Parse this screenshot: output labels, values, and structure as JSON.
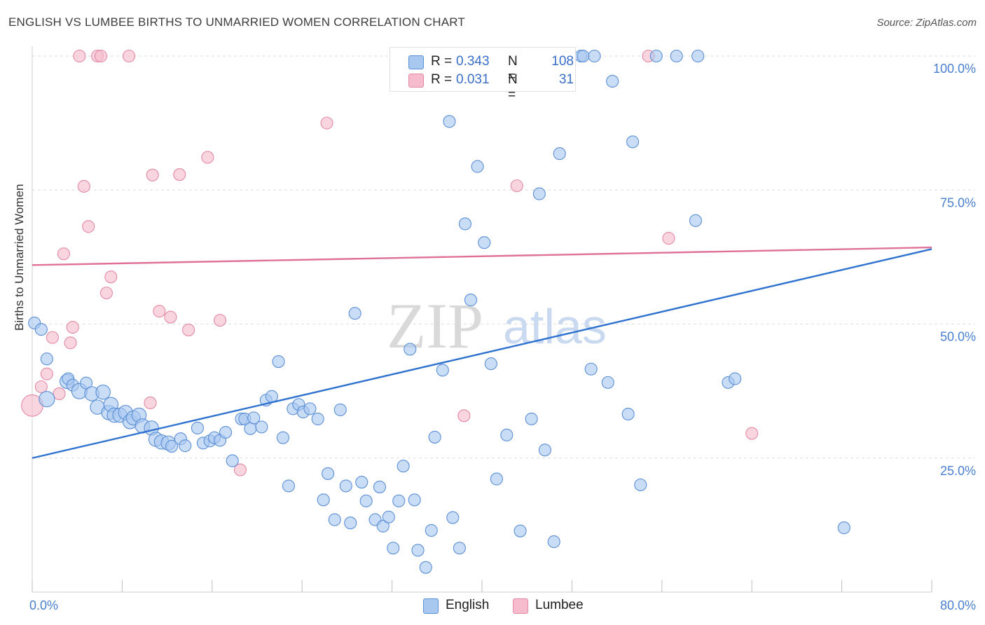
{
  "header": {
    "title": "ENGLISH VS LUMBEE BIRTHS TO UNMARRIED WOMEN CORRELATION CHART",
    "source": "Source: ZipAtlas.com"
  },
  "watermark": {
    "zip": "ZIP",
    "atlas": "atlas"
  },
  "legend": {
    "r_label": "R =",
    "n_label": "N =",
    "english": {
      "r": "0.343",
      "n": "108"
    },
    "lumbee": {
      "r": "0.031",
      "n": "31"
    }
  },
  "bottom_legend": {
    "english": "English",
    "lumbee": "Lumbee"
  },
  "colors": {
    "english_fill": "#a9c8f0",
    "english_stroke": "#5b8fd6",
    "english_line": "#2f72d0",
    "lumbee_fill": "#f6bccd",
    "lumbee_stroke": "#e48aa6",
    "lumbee_line": "#e0729a",
    "grid": "#dcdcdc",
    "tick_label": "#4a7fd0"
  },
  "chart_data": {
    "type": "scatter",
    "title": "ENGLISH VS LUMBEE BIRTHS TO UNMARRIED WOMEN CORRELATION CHART",
    "xlabel": "",
    "ylabel": "Births to Unmarried Women",
    "xlim": [
      0,
      80
    ],
    "ylim": [
      0,
      102
    ],
    "x_tick_labels": [
      "0.0%",
      "80.0%"
    ],
    "y_ticks": [
      {
        "value": 100,
        "label": "100.0%"
      },
      {
        "value": 75,
        "label": "75.0%"
      },
      {
        "value": 50,
        "label": "50.0%"
      },
      {
        "value": 25,
        "label": "25.0%"
      }
    ],
    "grid": true,
    "series": [
      {
        "name": "English",
        "r": 0.343,
        "n": 108,
        "trend": {
          "x": [
            0,
            80
          ],
          "y": [
            25,
            64
          ]
        },
        "points": [
          [
            0.2,
            50.2,
            1.0
          ],
          [
            0.8,
            49.0,
            1.0
          ],
          [
            1.3,
            36.0,
            1.3
          ],
          [
            1.3,
            43.5,
            1.0
          ],
          [
            3.1,
            39.3,
            1.2
          ],
          [
            3.2,
            39.8,
            1.0
          ],
          [
            3.6,
            38.6,
            1.0
          ],
          [
            4.2,
            37.5,
            1.3
          ],
          [
            4.8,
            39.0,
            1.0
          ],
          [
            5.3,
            37.0,
            1.2
          ],
          [
            5.8,
            34.5,
            1.2
          ],
          [
            6.3,
            37.3,
            1.2
          ],
          [
            6.8,
            33.5,
            1.2
          ],
          [
            7.0,
            35.0,
            1.2
          ],
          [
            7.3,
            33.0,
            1.2
          ],
          [
            7.8,
            33.0,
            1.2
          ],
          [
            8.3,
            33.5,
            1.2
          ],
          [
            8.7,
            31.8,
            1.2
          ],
          [
            9.0,
            32.5,
            1.2
          ],
          [
            9.5,
            33.0,
            1.2
          ],
          [
            9.8,
            31.0,
            1.2
          ],
          [
            10.6,
            30.6,
            1.2
          ],
          [
            11.0,
            28.5,
            1.2
          ],
          [
            11.5,
            28.0,
            1.2
          ],
          [
            12.1,
            27.8,
            1.2
          ],
          [
            12.4,
            27.2,
            1.0
          ],
          [
            13.2,
            28.6,
            1.0
          ],
          [
            13.6,
            27.3,
            1.0
          ],
          [
            14.7,
            30.6,
            1.0
          ],
          [
            15.2,
            27.8,
            1.0
          ],
          [
            15.8,
            28.2,
            1.0
          ],
          [
            16.2,
            28.8,
            1.0
          ],
          [
            16.7,
            28.3,
            1.0
          ],
          [
            17.2,
            29.8,
            1.0
          ],
          [
            17.8,
            24.5,
            1.0
          ],
          [
            18.6,
            32.3,
            1.0
          ],
          [
            18.9,
            32.3,
            1.0
          ],
          [
            19.4,
            30.5,
            1.0
          ],
          [
            19.7,
            32.5,
            1.0
          ],
          [
            20.4,
            30.8,
            1.0
          ],
          [
            20.8,
            35.8,
            1.0
          ],
          [
            21.3,
            36.5,
            1.0
          ],
          [
            21.9,
            43.0,
            1.0
          ],
          [
            22.3,
            28.8,
            1.0
          ],
          [
            22.8,
            19.8,
            1.0
          ],
          [
            23.2,
            34.2,
            1.0
          ],
          [
            23.7,
            35.0,
            1.0
          ],
          [
            24.1,
            33.6,
            1.0
          ],
          [
            24.7,
            34.2,
            1.0
          ],
          [
            25.4,
            32.3,
            1.0
          ],
          [
            25.9,
            17.2,
            1.0
          ],
          [
            26.3,
            22.1,
            1.0
          ],
          [
            26.9,
            13.5,
            1.0
          ],
          [
            27.4,
            34.0,
            1.0
          ],
          [
            27.9,
            19.8,
            1.0
          ],
          [
            28.3,
            12.9,
            1.0
          ],
          [
            28.7,
            52.0,
            1.0
          ],
          [
            29.3,
            20.5,
            1.0
          ],
          [
            29.7,
            17.0,
            1.0
          ],
          [
            30.5,
            13.5,
            1.0
          ],
          [
            30.9,
            19.6,
            1.0
          ],
          [
            31.2,
            12.3,
            1.0
          ],
          [
            31.7,
            14.0,
            1.0
          ],
          [
            32.1,
            8.2,
            1.0
          ],
          [
            32.6,
            17.0,
            1.0
          ],
          [
            33.0,
            23.5,
            1.0
          ],
          [
            33.6,
            45.3,
            1.0
          ],
          [
            34.0,
            17.2,
            1.0
          ],
          [
            34.3,
            7.8,
            1.0
          ],
          [
            35.0,
            4.6,
            1.0
          ],
          [
            35.5,
            11.5,
            1.0
          ],
          [
            35.8,
            28.9,
            1.0
          ],
          [
            36.5,
            41.4,
            1.0
          ],
          [
            37.1,
            87.8,
            1.0
          ],
          [
            37.4,
            13.9,
            1.0
          ],
          [
            38.0,
            8.2,
            1.0
          ],
          [
            38.5,
            68.7,
            1.0
          ],
          [
            39.0,
            54.5,
            1.0
          ],
          [
            39.6,
            79.4,
            1.0
          ],
          [
            40.2,
            65.2,
            1.0
          ],
          [
            40.8,
            42.6,
            1.0
          ],
          [
            41.3,
            21.1,
            1.0
          ],
          [
            42.2,
            29.3,
            1.0
          ],
          [
            43.4,
            11.4,
            1.0
          ],
          [
            43.7,
            100.0,
            1.0
          ],
          [
            44.4,
            32.3,
            1.0
          ],
          [
            45.1,
            74.3,
            1.0
          ],
          [
            45.6,
            26.5,
            1.0
          ],
          [
            46.4,
            9.4,
            1.0
          ],
          [
            46.9,
            81.8,
            1.0
          ],
          [
            48.8,
            100.0,
            1.0
          ],
          [
            49.0,
            100.0,
            1.0
          ],
          [
            49.7,
            41.6,
            1.0
          ],
          [
            50.0,
            100.0,
            1.0
          ],
          [
            51.2,
            39.1,
            1.0
          ],
          [
            51.6,
            95.3,
            1.0
          ],
          [
            53.0,
            33.2,
            1.0
          ],
          [
            53.4,
            84.0,
            1.0
          ],
          [
            54.1,
            20.0,
            1.0
          ],
          [
            55.5,
            100.0,
            1.0
          ],
          [
            57.3,
            100.0,
            1.0
          ],
          [
            59.0,
            69.3,
            1.0
          ],
          [
            59.2,
            100.0,
            1.0
          ],
          [
            61.9,
            39.1,
            1.0
          ],
          [
            62.5,
            39.8,
            1.0
          ],
          [
            72.2,
            12.0,
            1.0
          ]
        ]
      },
      {
        "name": "Lumbee",
        "r": 0.031,
        "n": 31,
        "trend": {
          "x": [
            0,
            80
          ],
          "y": [
            61,
            64.3
          ]
        },
        "points": [
          [
            0.0,
            34.8,
            1.8
          ],
          [
            0.8,
            38.3,
            1.0
          ],
          [
            1.3,
            40.7,
            1.0
          ],
          [
            1.8,
            47.5,
            1.0
          ],
          [
            2.4,
            37.0,
            1.0
          ],
          [
            2.8,
            63.1,
            1.0
          ],
          [
            3.4,
            46.5,
            1.0
          ],
          [
            3.6,
            49.4,
            1.0
          ],
          [
            4.2,
            100.0,
            1.0
          ],
          [
            4.6,
            75.7,
            1.0
          ],
          [
            5.0,
            68.2,
            1.0
          ],
          [
            5.8,
            100.0,
            1.0
          ],
          [
            6.1,
            100.0,
            1.0
          ],
          [
            6.6,
            55.8,
            1.0
          ],
          [
            7.0,
            58.8,
            1.0
          ],
          [
            8.6,
            100.0,
            1.0
          ],
          [
            10.5,
            35.3,
            1.0
          ],
          [
            10.7,
            77.8,
            1.0
          ],
          [
            11.3,
            52.4,
            1.0
          ],
          [
            12.3,
            51.3,
            1.0
          ],
          [
            13.1,
            77.9,
            1.0
          ],
          [
            13.9,
            48.9,
            1.0
          ],
          [
            15.6,
            81.1,
            1.0
          ],
          [
            16.7,
            50.7,
            1.0
          ],
          [
            18.5,
            22.8,
            1.0
          ],
          [
            26.2,
            87.5,
            1.0
          ],
          [
            38.4,
            32.9,
            1.0
          ],
          [
            43.1,
            75.8,
            1.0
          ],
          [
            54.8,
            100.0,
            1.0
          ],
          [
            56.6,
            66.0,
            1.0
          ],
          [
            64.0,
            29.6,
            1.0
          ]
        ]
      }
    ]
  }
}
